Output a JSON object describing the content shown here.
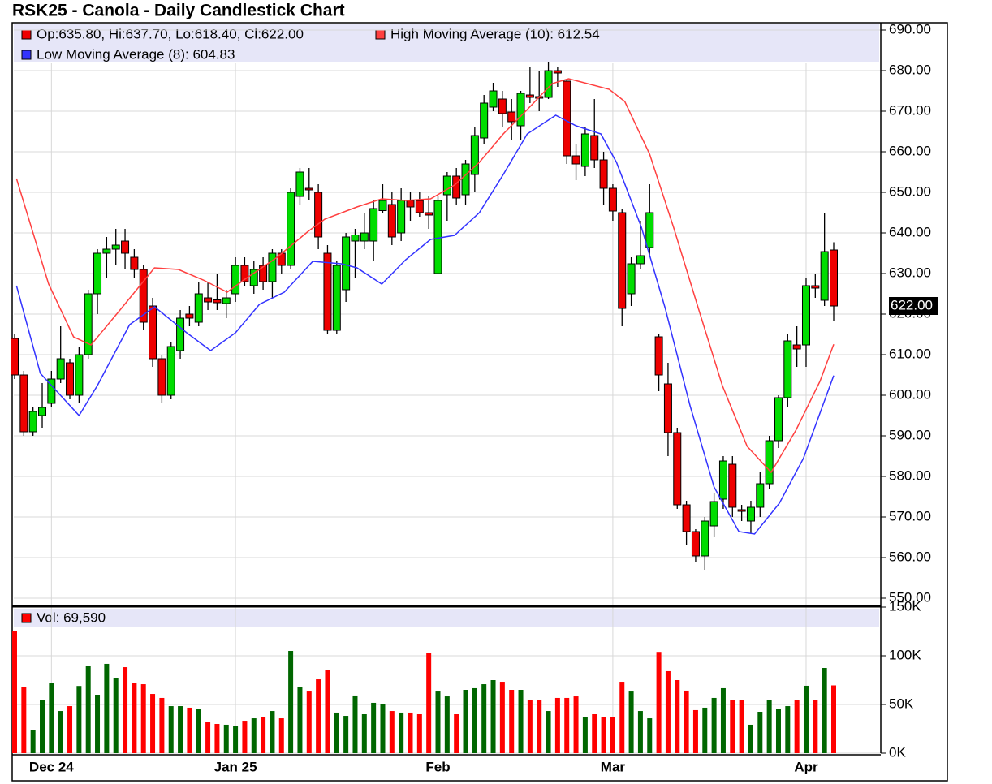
{
  "chart_data": {
    "type": "candlestick",
    "title": "RSK25 - Canola - Daily Candlestick Chart",
    "ohlc_legend": "Op:635.80, Hi:637.70, Lo:618.40, Cl:622.00",
    "up_color": "#00dd00",
    "down_color": "#ee0000",
    "grid": true,
    "categories": [
      null,
      null,
      null,
      null,
      "Dec 24",
      null,
      null,
      null,
      null,
      null,
      null,
      null,
      null,
      null,
      null,
      null,
      null,
      null,
      null,
      null,
      null,
      null,
      null,
      null,
      "Jan 25",
      null,
      null,
      null,
      null,
      null,
      null,
      null,
      null,
      null,
      null,
      null,
      null,
      null,
      null,
      null,
      null,
      null,
      null,
      null,
      null,
      null,
      "Feb",
      null,
      null,
      null,
      null,
      null,
      null,
      null,
      null,
      null,
      null,
      null,
      null,
      null,
      null,
      null,
      null,
      null,
      null,
      "Mar",
      null,
      null,
      null,
      null,
      null,
      null,
      null,
      null,
      null,
      null,
      null,
      null,
      null,
      null,
      null,
      null,
      null,
      null,
      null,
      null,
      "Apr",
      null,
      null,
      null
    ],
    "open": [
      614,
      605,
      591,
      595,
      598,
      604,
      608,
      600,
      610,
      625,
      635,
      636,
      638,
      634,
      631,
      622,
      609,
      600,
      611,
      620,
      618,
      624,
      623.5,
      622.6,
      625,
      632,
      627,
      632,
      628,
      635,
      632,
      649,
      651,
      650,
      635,
      616,
      626,
      638,
      638,
      638,
      645.5,
      647,
      640,
      648,
      648,
      645,
      630,
      649.4,
      654,
      649.4,
      654.4,
      663.4,
      671,
      673,
      669.8,
      666.4,
      674,
      673.6,
      673.4,
      680,
      677.4,
      659,
      656.4,
      664,
      658,
      651,
      645,
      625,
      632.4,
      636.4,
      614.4,
      602.8,
      590.8,
      573,
      566.4,
      560.4,
      567.8,
      574.4,
      583,
      571.8,
      569,
      572.4,
      578.2,
      588.8,
      599.4,
      612.4,
      612.4,
      627,
      623.4,
      635.8
    ],
    "high": [
      615,
      606,
      597,
      603,
      606,
      617,
      609,
      612,
      626,
      636,
      639,
      641,
      641,
      636,
      632,
      624,
      610,
      613,
      621,
      622,
      628,
      628,
      630,
      626,
      634,
      634,
      633,
      634,
      636,
      636,
      651,
      656,
      656,
      652,
      637,
      633,
      640,
      641,
      645,
      648,
      652,
      650,
      651,
      650,
      650,
      649,
      649,
      655,
      656,
      658,
      666,
      674,
      677,
      675,
      673,
      675,
      681,
      680,
      682,
      681,
      678,
      662,
      666,
      673,
      660,
      652,
      646,
      634,
      643,
      652,
      615,
      608,
      592,
      574,
      567,
      570,
      576,
      585,
      585,
      573,
      574,
      581,
      590,
      600,
      615,
      617,
      629,
      630,
      645,
      637.7
    ],
    "low": [
      604,
      590,
      590,
      592,
      597,
      603,
      599,
      598,
      609,
      620,
      629,
      632,
      631,
      629,
      616,
      607,
      598,
      599,
      609,
      617,
      617,
      621,
      621,
      619,
      623,
      627,
      625,
      626,
      624,
      630,
      631,
      647,
      648,
      636,
      615,
      615,
      623,
      629,
      636,
      633,
      645,
      637,
      638,
      643,
      644,
      641,
      630,
      643,
      647,
      647,
      650,
      662,
      670,
      666,
      663,
      663,
      672,
      670,
      673,
      676,
      657,
      653,
      654,
      656,
      647,
      643,
      617,
      622,
      631,
      634,
      601,
      585,
      572,
      563,
      559,
      557,
      565,
      572,
      570,
      569,
      566,
      570,
      577,
      587,
      597,
      607,
      607,
      624,
      622,
      618.4
    ],
    "close": [
      605,
      591,
      596,
      597,
      604,
      609,
      600,
      610,
      625,
      635,
      636,
      637,
      635,
      631,
      618,
      609,
      600,
      612,
      619,
      619,
      625,
      623,
      622.8,
      624,
      632,
      628,
      631,
      628,
      635,
      632,
      650,
      655,
      650.6,
      639,
      616,
      632,
      639,
      639.5,
      640,
      646,
      648,
      639,
      648,
      646.4,
      645,
      644.4,
      648,
      654,
      648.6,
      657,
      664,
      672,
      675,
      669.4,
      667.4,
      674.4,
      673.4,
      673.2,
      680,
      679.4,
      659,
      657,
      664.4,
      658,
      651,
      645.4,
      621.4,
      632.4,
      634.4,
      645,
      605,
      590.8,
      573,
      566.4,
      560.4,
      569,
      573.8,
      583.8,
      572.4,
      571.4,
      572.4,
      578.2,
      588.8,
      599.4,
      613.4,
      611.4,
      627,
      626.4,
      635.4,
      622
    ],
    "ylim": [
      548.4,
      691.8
    ],
    "yticks": [
      {
        "value": 550,
        "label": "550.00"
      },
      {
        "value": 560,
        "label": "560.00"
      },
      {
        "value": 570,
        "label": "570.00"
      },
      {
        "value": 580,
        "label": "580.00"
      },
      {
        "value": 590,
        "label": "590.00"
      },
      {
        "value": 600,
        "label": "600.00"
      },
      {
        "value": 610,
        "label": "610.00"
      },
      {
        "value": 620,
        "label": "620.00"
      },
      {
        "value": 630,
        "label": "630.00"
      },
      {
        "value": 640,
        "label": "640.00"
      },
      {
        "value": 650,
        "label": "650.00"
      },
      {
        "value": 660,
        "label": "660.00"
      },
      {
        "value": 670,
        "label": "670.00"
      },
      {
        "value": 680,
        "label": "680.00"
      },
      {
        "value": 690,
        "label": "690.00"
      }
    ],
    "last_price": {
      "value": 622,
      "label": "622.00"
    },
    "moving_averages": [
      {
        "name": "High Moving Average (10): 612.54",
        "color": "#ff4040",
        "x": [
          0.2,
          3.7,
          6.4,
          8.3,
          11.6,
          15.2,
          17.8,
          20.5,
          23.1,
          24.9,
          28.4,
          31.9,
          33.7,
          37.2,
          39.9,
          42.5,
          45.2,
          47.8,
          50.5,
          53.1,
          55.7,
          58.4,
          60.2,
          61.9,
          64.6,
          66.3,
          69,
          71.6,
          74.3,
          76.9,
          79.6,
          82.2,
          84.9,
          87.5,
          89
        ],
        "values": [
          653.4,
          627.4,
          614.4,
          612.4,
          621.4,
          631.4,
          631,
          628.4,
          625.4,
          628.4,
          633.8,
          640.4,
          643.4,
          646.4,
          648.4,
          648,
          648.4,
          651.8,
          657.4,
          664.4,
          670.4,
          676.8,
          678,
          677,
          675.4,
          672.4,
          659.4,
          641.4,
          621.4,
          602.4,
          587.4,
          581,
          591.4,
          603.4,
          612.54
        ]
      },
      {
        "name": "Low Moving Average (8): 604.83",
        "color": "#3333ff",
        "x": [
          0.2,
          2.8,
          7,
          9,
          12.5,
          15.2,
          18.7,
          21.3,
          24,
          26.6,
          29.3,
          32.4,
          35.5,
          37.2,
          39.9,
          42.5,
          45.2,
          47.8,
          50.5,
          53.1,
          55.7,
          58.8,
          61,
          63.7,
          65.4,
          68.1,
          70.7,
          73.4,
          76,
          78.7,
          80.4,
          83.1,
          85.7,
          89
        ],
        "values": [
          627,
          605.4,
          595,
          602.4,
          617.4,
          621.8,
          615.4,
          611,
          615.4,
          622.4,
          625.4,
          633,
          632.4,
          631.4,
          627.4,
          633.4,
          638.4,
          639.4,
          645,
          654.4,
          664.4,
          669,
          666.4,
          664.4,
          657.4,
          641.4,
          621.4,
          597.4,
          577.4,
          566.4,
          565.8,
          573.4,
          584.4,
          604.83
        ]
      }
    ],
    "volume": {
      "legend": "Vol: 69,590",
      "up_color": "#006600",
      "down_color": "#ff0000",
      "values": [
        125000,
        67500,
        24000,
        55000,
        71700,
        43300,
        48300,
        69000,
        90000,
        60000,
        91700,
        76700,
        88300,
        71700,
        70800,
        60800,
        56700,
        48300,
        48300,
        46700,
        45800,
        31700,
        30000,
        29200,
        27500,
        33300,
        35800,
        37500,
        43300,
        35800,
        105000,
        67500,
        63300,
        75800,
        85800,
        41700,
        38300,
        59200,
        40000,
        51700,
        50000,
        43300,
        41700,
        41700,
        40000,
        102500,
        63300,
        58300,
        40000,
        65000,
        66700,
        70800,
        75000,
        73300,
        65000,
        65000,
        55000,
        54200,
        43300,
        56700,
        56700,
        58300,
        37500,
        40000,
        37500,
        37500,
        73300,
        63300,
        43300,
        35800,
        104000,
        84200,
        75000,
        64200,
        44200,
        46700,
        56700,
        66700,
        55000,
        55000,
        29200,
        42500,
        55000,
        45800,
        48300,
        55000,
        69200,
        54200,
        87500,
        69590
      ],
      "ylim": [
        0,
        150000
      ],
      "yticks": [
        {
          "value": 0,
          "label": "0K"
        },
        {
          "value": 50000,
          "label": "50K"
        },
        {
          "value": 100000,
          "label": "100K"
        },
        {
          "value": 150000,
          "label": "150K"
        }
      ]
    }
  }
}
